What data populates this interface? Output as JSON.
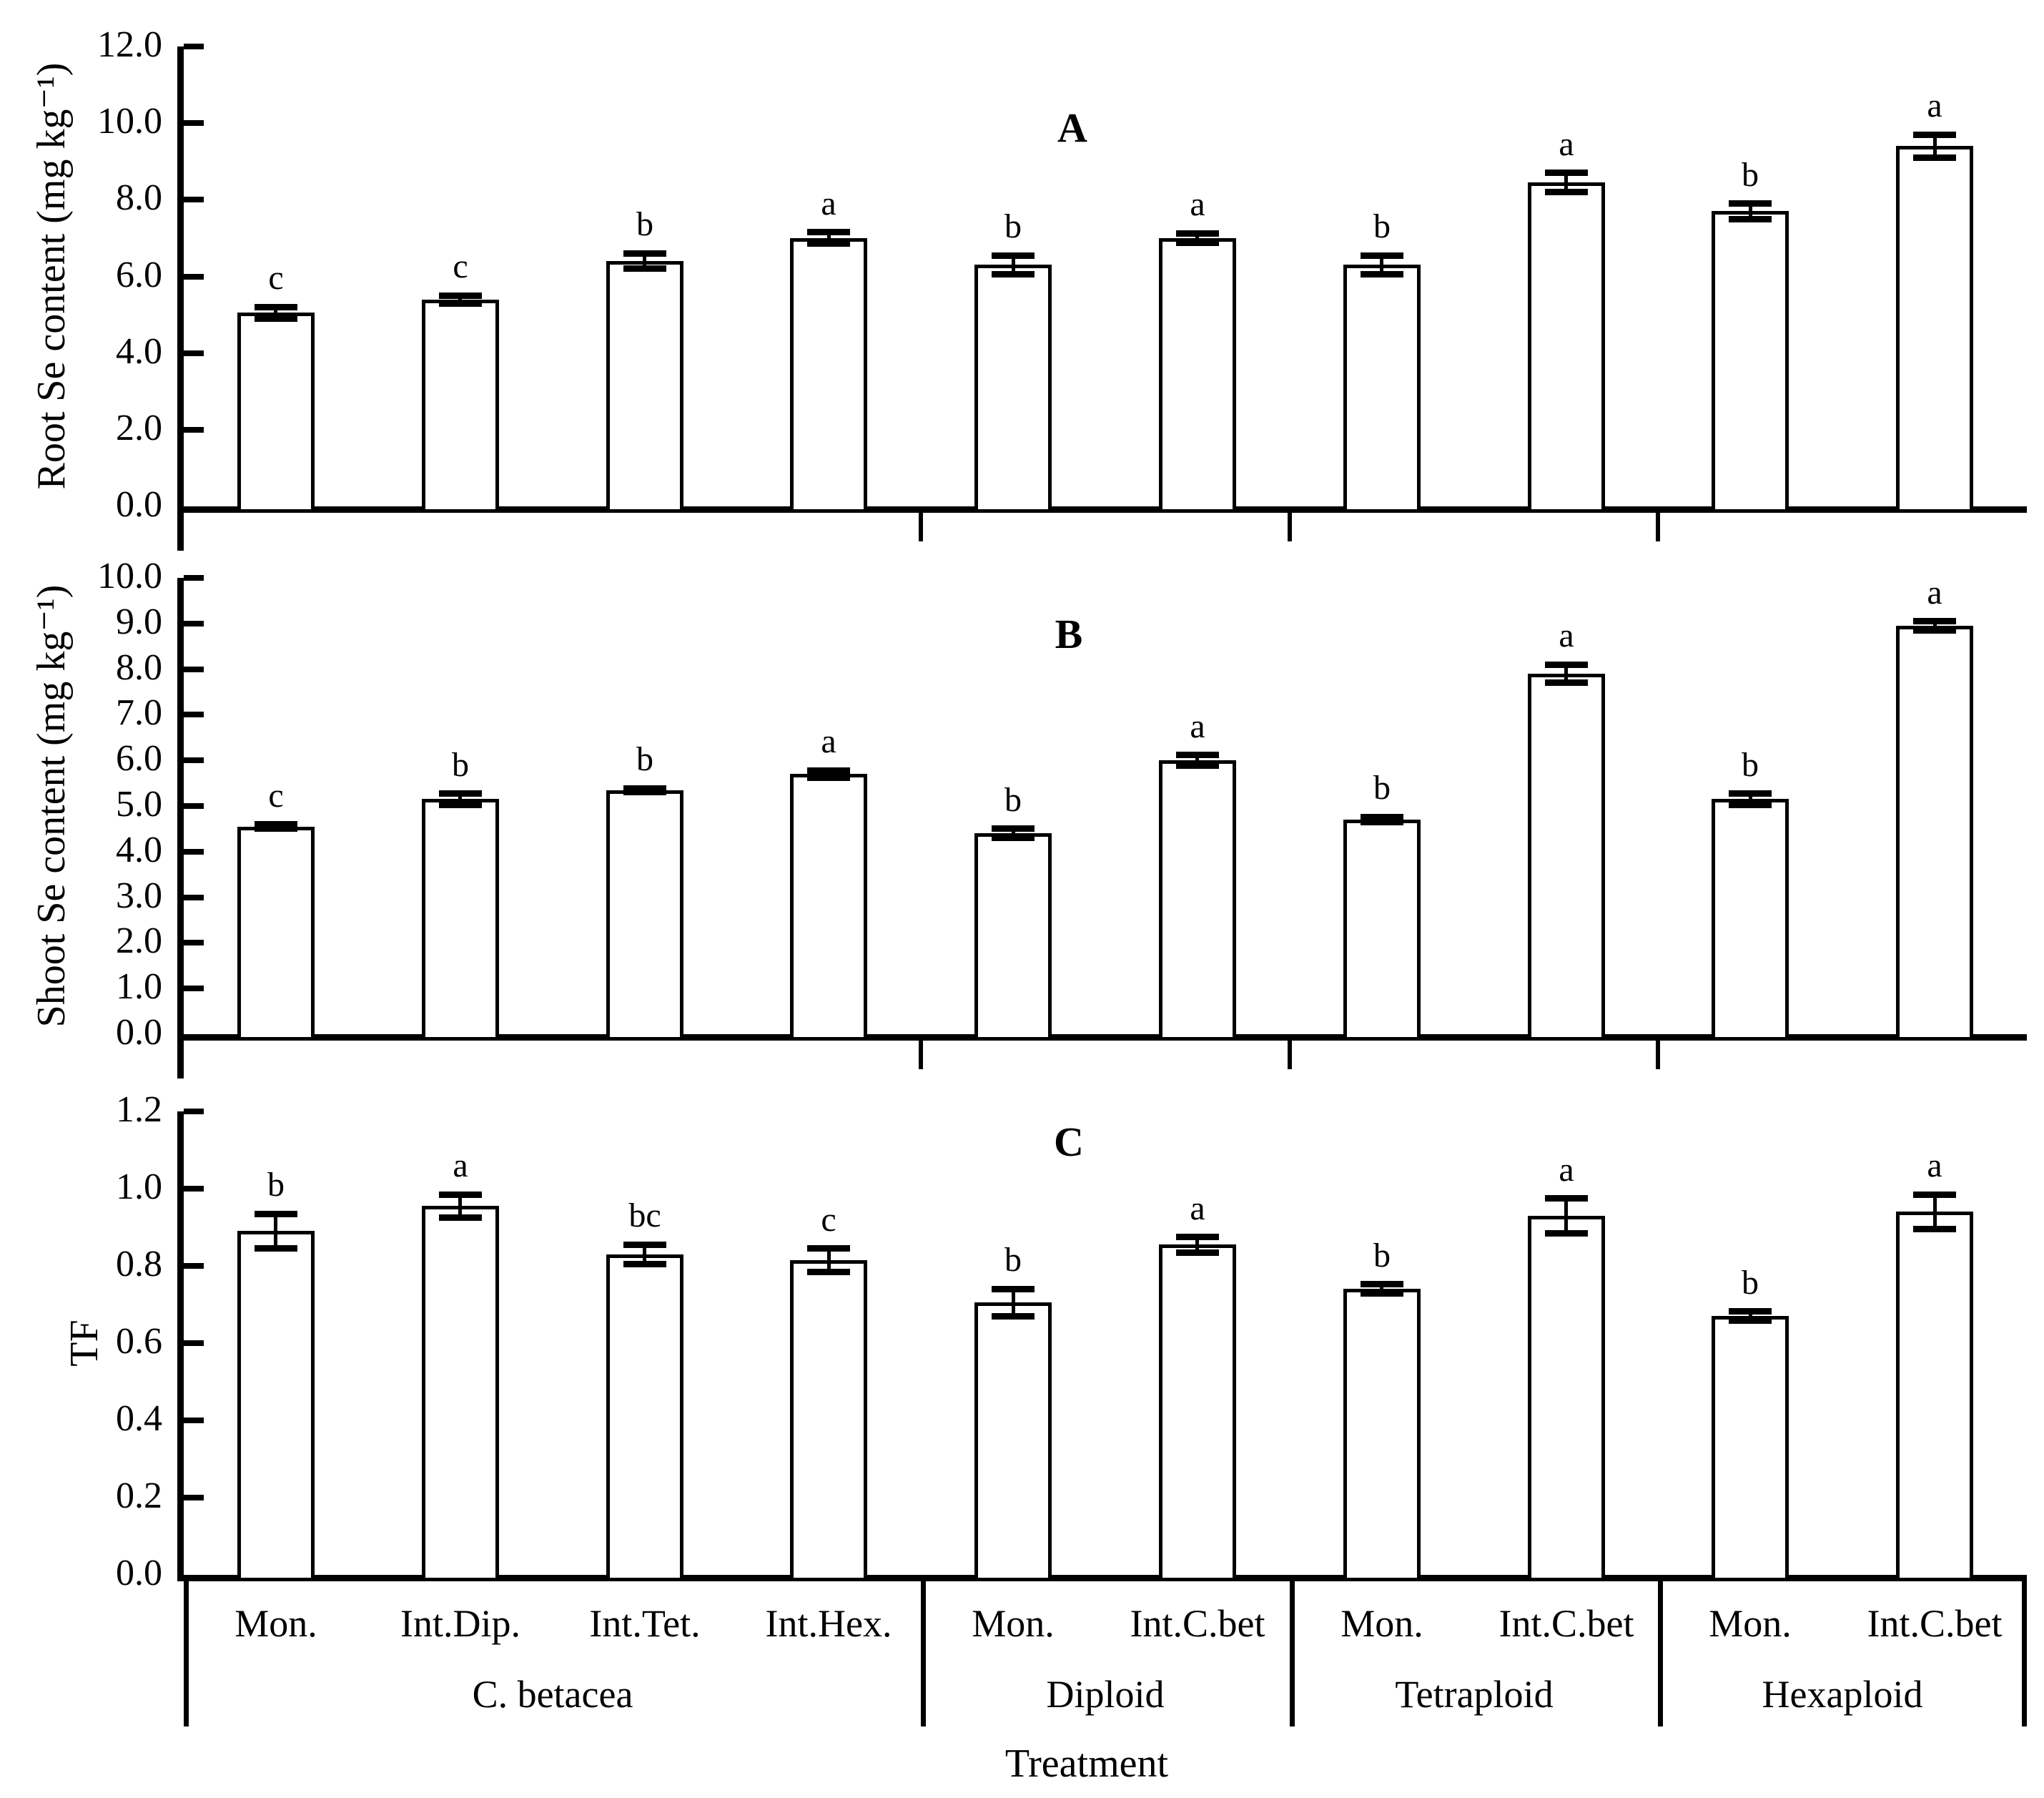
{
  "figure": {
    "xlabel": "Treatment"
  },
  "x_axis": {
    "categories": [
      "Mon.",
      "Int.Dip.",
      "Int.Tet.",
      "Int.Hex.",
      "Mon.",
      "Int.C.bet",
      "Mon.",
      "Int.C.bet",
      "Mon.",
      "Int.C.bet"
    ],
    "groups": [
      {
        "label": "C. betacea",
        "span": 4
      },
      {
        "label": "Diploid",
        "span": 2
      },
      {
        "label": "Tetraploid",
        "span": 2
      },
      {
        "label": "Hexaploid",
        "span": 2
      }
    ]
  },
  "chart_data": [
    {
      "type": "bar",
      "panel_label": "A",
      "ylabel": "Root Se content (mg kg⁻¹)",
      "xlabel": "Treatment",
      "ylim": [
        0,
        12
      ],
      "ytick_values": [
        0,
        2,
        4,
        6,
        8,
        10,
        12
      ],
      "ytick_labels": [
        "0.0",
        "2.0",
        "4.0",
        "6.0",
        "8.0",
        "10.0",
        "12.0"
      ],
      "grid": false,
      "bar_fill": "#ffffff",
      "bar_border": "#000000",
      "categories": [
        "Mon.",
        "Int.Dip.",
        "Int.Tet.",
        "Int.Hex.",
        "Mon.",
        "Int.C.bet",
        "Mon.",
        "Int.C.bet",
        "Mon.",
        "Int.C.bet"
      ],
      "values": [
        5.05,
        5.4,
        6.4,
        7.0,
        6.3,
        7.0,
        6.3,
        8.45,
        7.7,
        9.4
      ],
      "errors": [
        0.15,
        0.1,
        0.2,
        0.15,
        0.25,
        0.12,
        0.25,
        0.25,
        0.2,
        0.3
      ],
      "sig_letters": [
        "c",
        "c",
        "b",
        "a",
        "b",
        "a",
        "b",
        "a",
        "b",
        "a"
      ]
    },
    {
      "type": "bar",
      "panel_label": "B",
      "ylabel": "Shoot Se content (mg kg⁻¹)",
      "xlabel": "Treatment",
      "ylim": [
        0,
        10
      ],
      "ytick_values": [
        0,
        1,
        2,
        3,
        4,
        5,
        6,
        7,
        8,
        9,
        10
      ],
      "ytick_labels": [
        "0.0",
        "1.0",
        "2.0",
        "3.0",
        "4.0",
        "5.0",
        "6.0",
        "7.0",
        "8.0",
        "9.0",
        "10.0"
      ],
      "grid": false,
      "bar_fill": "#ffffff",
      "bar_border": "#000000",
      "categories": [
        "Mon.",
        "Int.Dip.",
        "Int.Tet.",
        "Int.Hex.",
        "Mon.",
        "Int.C.bet",
        "Mon.",
        "Int.C.bet",
        "Mon.",
        "Int.C.bet"
      ],
      "values": [
        4.55,
        5.15,
        5.35,
        5.7,
        4.4,
        6.0,
        4.7,
        7.9,
        5.15,
        8.95
      ],
      "errors": [
        0.05,
        0.12,
        0.04,
        0.08,
        0.1,
        0.12,
        0.06,
        0.2,
        0.12,
        0.1
      ],
      "sig_letters": [
        "c",
        "b",
        "b",
        "a",
        "b",
        "a",
        "b",
        "a",
        "b",
        "a"
      ]
    },
    {
      "type": "bar",
      "panel_label": "C",
      "ylabel": "TF",
      "xlabel": "Treatment",
      "ylim": [
        0,
        1.2
      ],
      "ytick_values": [
        0,
        0.2,
        0.4,
        0.6,
        0.8,
        1.0,
        1.2
      ],
      "ytick_labels": [
        "0.0",
        "0.2",
        "0.4",
        "0.6",
        "0.8",
        "1.0",
        "1.2"
      ],
      "grid": false,
      "bar_fill": "#ffffff",
      "bar_border": "#000000",
      "categories": [
        "Mon.",
        "Int.Dip.",
        "Int.Tet.",
        "Int.Hex.",
        "Mon.",
        "Int.C.bet",
        "Mon.",
        "Int.C.bet",
        "Mon.",
        "Int.C.bet"
      ],
      "values": [
        0.89,
        0.955,
        0.83,
        0.815,
        0.705,
        0.855,
        0.74,
        0.93,
        0.67,
        0.94
      ],
      "errors": [
        0.045,
        0.03,
        0.025,
        0.03,
        0.035,
        0.02,
        0.012,
        0.045,
        0.012,
        0.045
      ],
      "sig_letters": [
        "b",
        "a",
        "bc",
        "c",
        "b",
        "a",
        "b",
        "a",
        "b",
        "a"
      ]
    }
  ]
}
